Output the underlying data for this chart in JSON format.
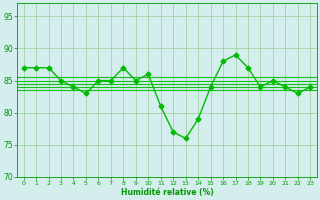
{
  "x": [
    0,
    1,
    2,
    3,
    4,
    5,
    6,
    7,
    8,
    9,
    10,
    11,
    12,
    13,
    14,
    15,
    16,
    17,
    18,
    19,
    20,
    21,
    22,
    23
  ],
  "y": [
    87,
    87,
    87,
    85,
    84,
    83,
    85,
    85,
    87,
    85,
    86,
    81,
    77,
    76,
    79,
    84,
    88,
    89,
    87,
    84,
    85,
    84,
    83,
    84
  ],
  "flat_lines": [
    83.5,
    84.0,
    84.5,
    85.0,
    85.5
  ],
  "line_color": "#00bb00",
  "marker": "D",
  "marker_size": 2.5,
  "linewidth": 1.0,
  "flat_linewidth": 0.8,
  "background_color": "#d4eded",
  "grid_color": "#99cc99",
  "tick_color": "#009900",
  "label_color": "#009900",
  "xlabel": "Humidité relative (%)",
  "ylim": [
    70,
    97
  ],
  "xlim": [
    -0.5,
    23.5
  ],
  "yticks": [
    70,
    75,
    80,
    85,
    90,
    95
  ],
  "xticks": [
    0,
    1,
    2,
    3,
    4,
    5,
    6,
    7,
    8,
    9,
    10,
    11,
    12,
    13,
    14,
    15,
    16,
    17,
    18,
    19,
    20,
    21,
    22,
    23
  ],
  "figsize": [
    3.2,
    2.0
  ],
  "dpi": 100
}
